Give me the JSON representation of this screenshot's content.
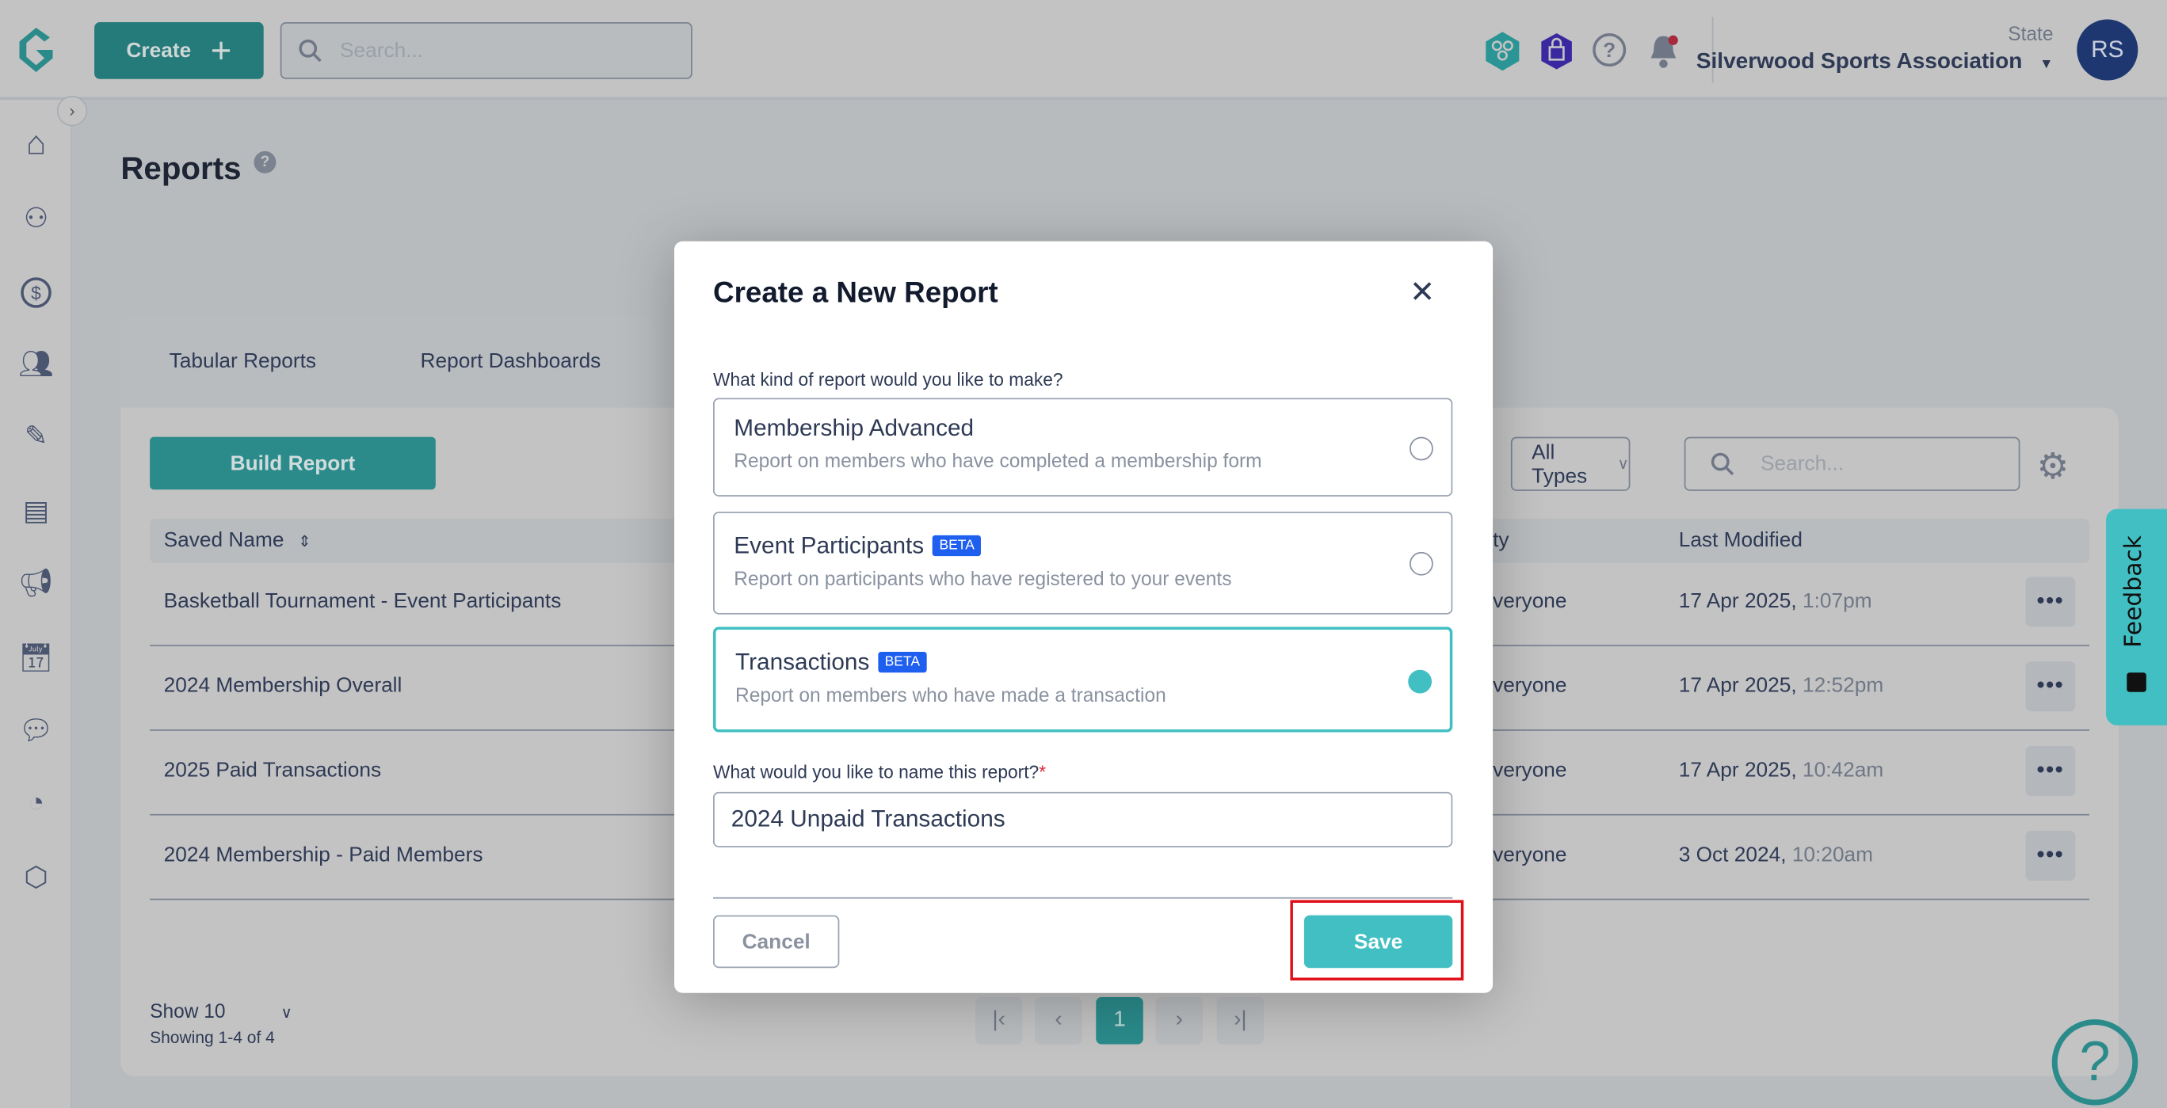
{
  "topbar": {
    "create_label": "Create",
    "search_placeholder": "Search...",
    "state_label": "State",
    "org_name": "Silverwood Sports Association",
    "avatar_initials": "RS"
  },
  "sidebar": {
    "items": [
      "home",
      "organisation",
      "finance",
      "members",
      "forms",
      "registrations",
      "communications",
      "events",
      "messages",
      "reports",
      "shop"
    ]
  },
  "page": {
    "title": "Reports",
    "tabs": [
      "Tabular Reports",
      "Report Dashboards"
    ],
    "build_label": "Build Report",
    "type_filter": "All Types",
    "search_placeholder": "Search...",
    "columns": {
      "name": "Saved Name",
      "visibility": "ty",
      "modified": "Last Modified"
    },
    "rows": [
      {
        "name": "Basketball Tournament - Event Participants",
        "visibility": "veryone",
        "date": "17 Apr 2025,",
        "time": "1:07pm"
      },
      {
        "name": "2024 Membership Overall",
        "visibility": "veryone",
        "date": "17 Apr 2025,",
        "time": "12:52pm"
      },
      {
        "name": "2025 Paid Transactions",
        "visibility": "veryone",
        "date": "17 Apr 2025,",
        "time": "10:42am"
      },
      {
        "name": "2024 Membership - Paid Members",
        "visibility": "veryone",
        "date": "3 Oct 2024,",
        "time": "10:20am"
      }
    ],
    "show": "Show 10",
    "showing": "Showing 1-4 of 4",
    "current_page": "1",
    "feedback": "Feedback"
  },
  "modal": {
    "title": "Create a New Report",
    "question": "What kind of report would you like to make?",
    "options": [
      {
        "name": "Membership Advanced",
        "desc": "Report on members who have completed a membership form",
        "beta": "",
        "selected": false
      },
      {
        "name": "Event Participants",
        "desc": "Report on participants who have registered to your events",
        "beta": "BETA",
        "selected": false
      },
      {
        "name": "Transactions",
        "desc": "Report on members who have made a transaction",
        "beta": "BETA",
        "selected": true
      }
    ],
    "name_question": "What would you like to name this report?",
    "required_mark": "*",
    "name_value": "2024 Unpaid Transactions",
    "cancel": "Cancel",
    "save": "Save"
  },
  "colors": {
    "accent": "#42bfc2",
    "brand_teal": "#2b8b8b",
    "beta": "#1f5fef",
    "highlight": "#e0101a"
  }
}
